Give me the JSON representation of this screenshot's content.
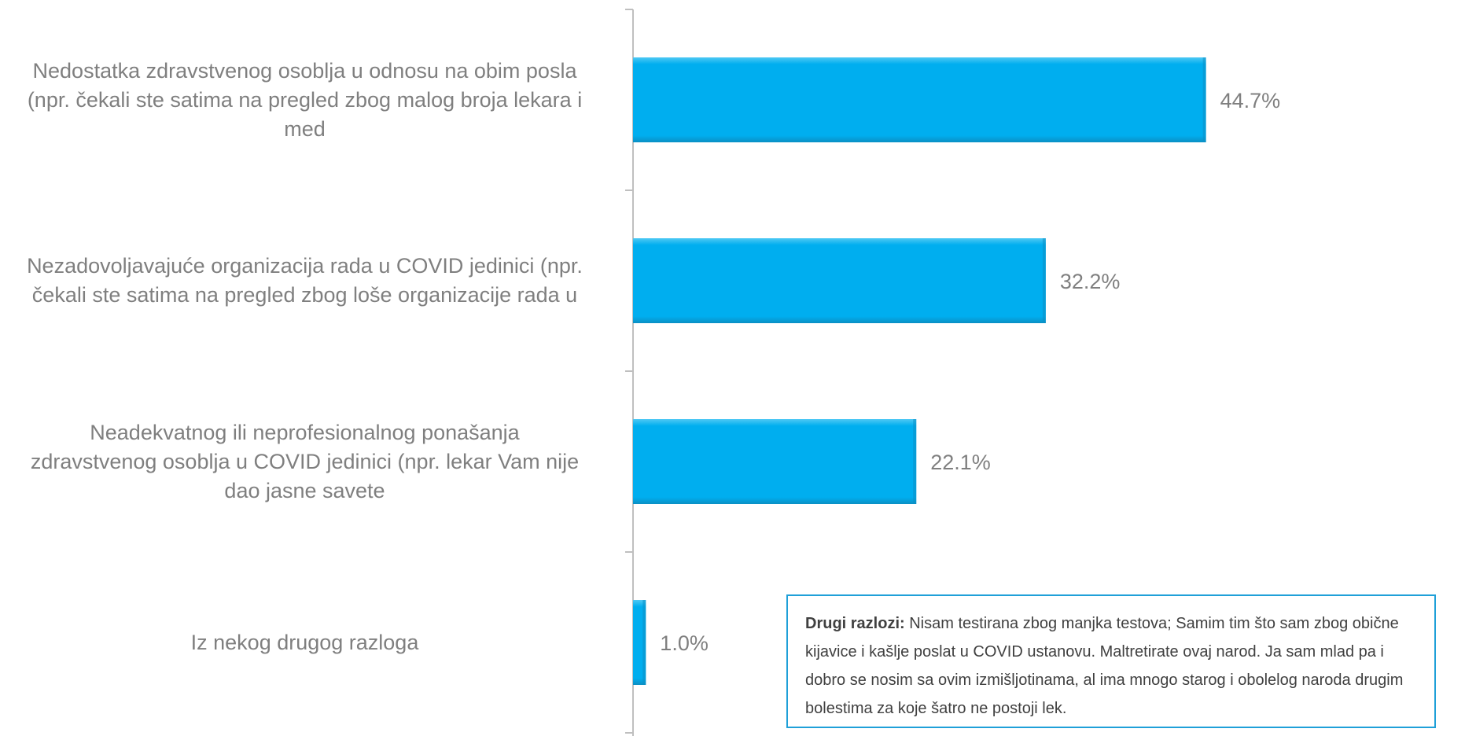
{
  "chart_data": {
    "type": "bar",
    "orientation": "horizontal",
    "categories": [
      "Nedostatka zdravstvenog osoblja u odnosu na obim posla (npr. čekali ste satima na pregled zbog malog broja lekara i med",
      "Nezadovoljavajuće organizacija rada u COVID jedinici (npr. čekali ste satima na pregled zbog loše organizacije rada u",
      "Neadekvatnog ili neprofesionalnog ponašanja zdravstvenog osoblja u COVID jedinici (npr. lekar Vam nije dao jasne savete",
      "Iz nekog drugog razloga"
    ],
    "category_lines": [
      [
        "Nedostatka zdravstvenog osoblja u odnosu na obim posla",
        "(npr. čekali ste satima na pregled zbog malog broja lekara i",
        "med"
      ],
      [
        "Nezadovoljavajuće organizacija rada u COVID jedinici (npr.",
        "čekali ste satima na pregled zbog loše organizacije rada u"
      ],
      [
        "Neadekvatnog ili neprofesionalnog ponašanja",
        "zdravstvenog osoblja u COVID jedinici (npr. lekar Vam nije",
        "dao jasne savete"
      ],
      [
        "Iz nekog drugog razloga"
      ]
    ],
    "values": [
      44.7,
      32.2,
      22.1,
      1.0
    ],
    "value_labels": [
      "44.7%",
      "32.2%",
      "22.1%",
      "1.0%"
    ],
    "unit": "%",
    "xlim": [
      0,
      65
    ],
    "grid": false,
    "legend": "none",
    "colors": {
      "bar": "#00aeef",
      "bar_dark": "#0b8fc4",
      "bar_light": "#4fc8f4",
      "axis": "#bfbfbf",
      "label": "#7f7f7f"
    }
  },
  "note": {
    "title": "Drugi razlozi:",
    "text": "Nisam testirana zbog manjka testova; Samim tim što sam zbog obične kijavice i kašlje poslat u COVID ustanovu. Maltretirate ovaj narod. Ja sam mlad pa i dobro se nosim sa ovim izmišljotinama, al ima mnogo starog i obolelog naroda drugim bolestima za koje šatro ne postoji lek.",
    "border_color": "#1fa0d8"
  }
}
